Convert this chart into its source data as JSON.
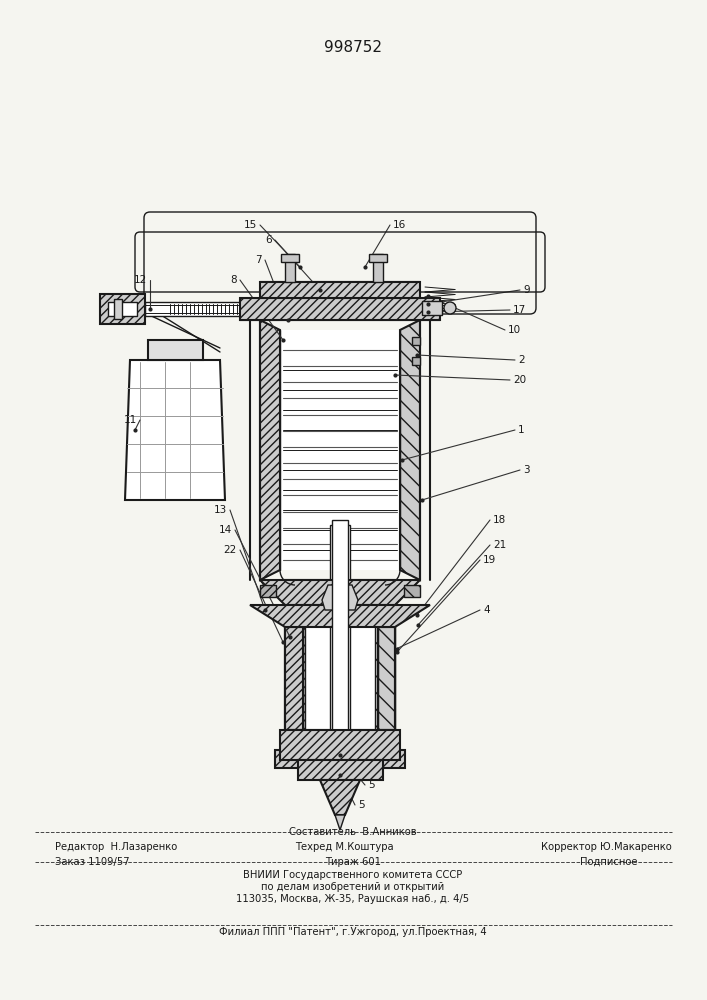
{
  "patent_number": "998752",
  "bg_color": "#f5f5f0",
  "line_color": "#1a1a1a",
  "title_fontsize": 11,
  "small_fontsize": 7.2,
  "footer_line1_left": "Редактор  Н.Лазаренко",
  "footer_line1_center_top": "Составитель  В.Анников",
  "footer_line1_center": "Техред М.Коштура",
  "footer_line1_right": "Корректор Ю.Макаренко",
  "footer_line2_left": "Заказ 1109/57",
  "footer_line2_center": "Тираж 601",
  "footer_line2_right": "Подписное",
  "footer_line3": "ВНИИИ Государственного комитета СССР",
  "footer_line4": "по делам изобретений и открытий",
  "footer_line5": "113035, Москва, Ж-35, Раушская наб., д. 4/5",
  "footer_last": "Филиал ППП \"Патент\", г.Ужгород, ул.Проектная, 4"
}
